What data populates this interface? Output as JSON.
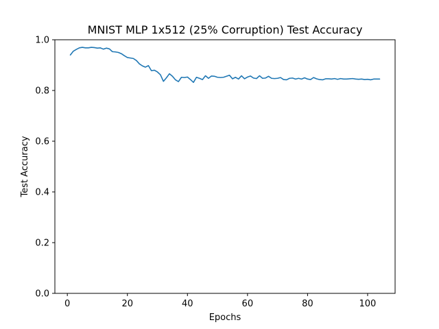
{
  "chart_data": {
    "type": "line",
    "title": "MNIST MLP 1x512 (25% Corruption) Test Accuracy",
    "xlabel": "Epochs",
    "ylabel": "Test Accuracy",
    "xlim": [
      -4.15,
      109.15
    ],
    "ylim": [
      0.0,
      1.0
    ],
    "xticks": [
      0,
      20,
      40,
      60,
      80,
      100
    ],
    "yticks": [
      0.0,
      0.2,
      0.4,
      0.6,
      0.8,
      1.0
    ],
    "xtick_labels": [
      "0",
      "20",
      "40",
      "60",
      "80",
      "100"
    ],
    "ytick_labels": [
      "0.0",
      "0.2",
      "0.4",
      "0.6",
      "0.8",
      "1.0"
    ],
    "grid": false,
    "series": [
      {
        "color": "#1f77b4",
        "x": [
          1,
          2,
          3,
          4,
          5,
          6,
          7,
          8,
          9,
          10,
          11,
          12,
          13,
          14,
          15,
          16,
          17,
          18,
          19,
          20,
          21,
          22,
          23,
          24,
          25,
          26,
          27,
          28,
          29,
          30,
          31,
          32,
          33,
          34,
          35,
          36,
          37,
          38,
          39,
          40,
          41,
          42,
          43,
          44,
          45,
          46,
          47,
          48,
          49,
          50,
          51,
          52,
          53,
          54,
          55,
          56,
          57,
          58,
          59,
          60,
          61,
          62,
          63,
          64,
          65,
          66,
          67,
          68,
          69,
          70,
          71,
          72,
          73,
          74,
          75,
          76,
          77,
          78,
          79,
          80,
          81,
          82,
          83,
          84,
          85,
          86,
          87,
          88,
          89,
          90,
          91,
          92,
          93,
          94,
          95,
          96,
          97,
          98,
          99,
          100,
          101,
          102,
          103,
          104
        ],
        "values": [
          0.94,
          0.955,
          0.962,
          0.968,
          0.97,
          0.968,
          0.968,
          0.97,
          0.969,
          0.967,
          0.968,
          0.963,
          0.967,
          0.964,
          0.953,
          0.952,
          0.95,
          0.945,
          0.937,
          0.93,
          0.928,
          0.926,
          0.918,
          0.905,
          0.897,
          0.892,
          0.898,
          0.878,
          0.88,
          0.873,
          0.862,
          0.836,
          0.85,
          0.866,
          0.856,
          0.842,
          0.835,
          0.852,
          0.851,
          0.853,
          0.843,
          0.832,
          0.852,
          0.848,
          0.843,
          0.858,
          0.848,
          0.857,
          0.856,
          0.852,
          0.851,
          0.852,
          0.856,
          0.86,
          0.846,
          0.852,
          0.845,
          0.858,
          0.846,
          0.853,
          0.857,
          0.849,
          0.847,
          0.858,
          0.848,
          0.849,
          0.856,
          0.848,
          0.847,
          0.848,
          0.851,
          0.843,
          0.842,
          0.848,
          0.849,
          0.845,
          0.848,
          0.845,
          0.85,
          0.845,
          0.843,
          0.851,
          0.846,
          0.843,
          0.842,
          0.846,
          0.846,
          0.845,
          0.847,
          0.844,
          0.847,
          0.845,
          0.845,
          0.846,
          0.847,
          0.845,
          0.844,
          0.845,
          0.843,
          0.844,
          0.842,
          0.845,
          0.845,
          0.845
        ]
      }
    ]
  }
}
